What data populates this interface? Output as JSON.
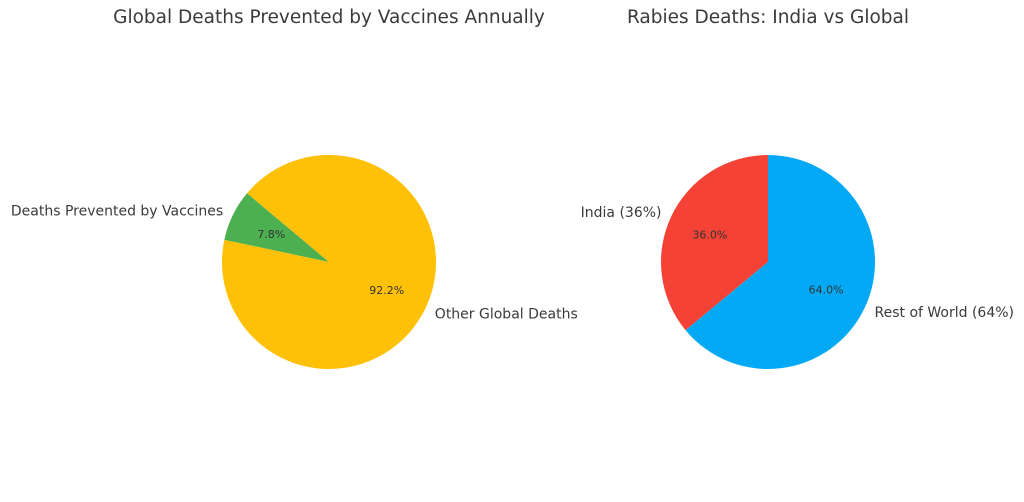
{
  "chart_data": [
    {
      "type": "pie",
      "title": "Global Deaths Prevented by Vaccines Annually",
      "start_angle_deg": 140,
      "direction": "counterclockwise",
      "slices": [
        {
          "label": "Deaths Prevented by Vaccines",
          "value": 7.8,
          "pct_label": "7.8%",
          "color": "#4caf50"
        },
        {
          "label": "Other Global Deaths",
          "value": 92.2,
          "pct_label": "92.2%",
          "color": "#ffc107"
        }
      ]
    },
    {
      "type": "pie",
      "title": "Rabies Deaths: India vs Global",
      "start_angle_deg": 90,
      "direction": "counterclockwise",
      "slices": [
        {
          "label": "India (36%)",
          "value": 36.0,
          "pct_label": "36.0%",
          "color": "#f44336"
        },
        {
          "label": "Rest of World (64%)",
          "value": 64.0,
          "pct_label": "64.0%",
          "color": "#03a9f4"
        }
      ]
    }
  ]
}
